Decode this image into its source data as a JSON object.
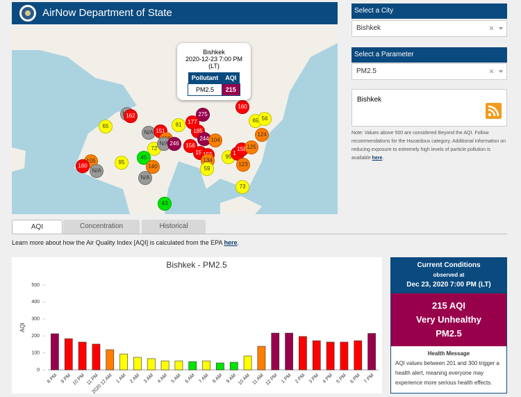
{
  "header": {
    "title": "AirNow Department of State"
  },
  "map": {
    "popup": {
      "city": "Bishkek",
      "datetime": "2020-12-23 7:00 PM",
      "zone": "(LT)",
      "headers": [
        "Pollutant",
        "AQI"
      ],
      "pollutant": "PM2.5",
      "aqi": "215",
      "aqi_color": "#99004c"
    },
    "markers": [
      {
        "label": "65",
        "color": "#ffff00"
      },
      {
        "label": "N/A",
        "color": "#999999"
      },
      {
        "label": "162",
        "color": "#ff0000"
      },
      {
        "label": "91",
        "color": "#ffff00"
      },
      {
        "label": "N/A",
        "color": "#999999"
      },
      {
        "label": "151",
        "color": "#ff0000"
      },
      {
        "label": "118",
        "color": "#ff7e00"
      },
      {
        "label": "72",
        "color": "#ffff00"
      },
      {
        "label": "N/A",
        "color": "#999999"
      },
      {
        "label": "246",
        "color": "#99004c"
      },
      {
        "label": "185",
        "color": "#ff0000"
      },
      {
        "label": "275",
        "color": "#99004c"
      },
      {
        "label": "177",
        "color": "#ff0000"
      },
      {
        "label": "244",
        "color": "#99004c"
      },
      {
        "label": "104",
        "color": "#ff7e00"
      },
      {
        "label": "156",
        "color": "#ff0000"
      },
      {
        "label": "155",
        "color": "#ff0000"
      },
      {
        "label": "155",
        "color": "#ff0000"
      },
      {
        "label": "134",
        "color": "#ff7e00"
      },
      {
        "label": "59",
        "color": "#ffff00"
      },
      {
        "label": "95",
        "color": "#ffff00"
      },
      {
        "label": "173",
        "color": "#ff0000"
      },
      {
        "label": "158",
        "color": "#ff0000"
      },
      {
        "label": "125",
        "color": "#ff7e00"
      },
      {
        "label": "123",
        "color": "#ff7e00"
      },
      {
        "label": "124",
        "color": "#ff7e00"
      },
      {
        "label": "69",
        "color": "#ffff00"
      },
      {
        "label": "56",
        "color": "#ffff00"
      },
      {
        "label": "160",
        "color": "#ff0000"
      },
      {
        "label": "73",
        "color": "#ffff00"
      },
      {
        "label": "43",
        "color": "#00e400"
      },
      {
        "label": "45",
        "color": "#00e400"
      },
      {
        "label": "140",
        "color": "#ff7e00"
      },
      {
        "label": "N/A",
        "color": "#999999"
      },
      {
        "label": "95",
        "color": "#ffff00"
      },
      {
        "label": "105",
        "color": "#ff7e00"
      },
      {
        "label": "160",
        "color": "#ff0000"
      },
      {
        "label": "N/A",
        "color": "#999999"
      }
    ]
  },
  "tabs": [
    "AQI",
    "Concentration",
    "Historical"
  ],
  "learn_more": {
    "text": "Learn more about how the Air Quality Index [AQI] is calculated from the EPA ",
    "link": "here",
    "end": "."
  },
  "sidebar": {
    "city_label": "Select a City",
    "city": "Bishkek",
    "param_label": "Select a Parameter",
    "param": "PM2.5",
    "feed": "Bishkek",
    "note": "Note: Values above 500 are considered Beyond the AQI. Follow recommendations for the Hazardous category. Additional information on reducing exposure to extremely high levels of particle pollution is available ",
    "note_link": "here",
    "note_end": "."
  },
  "current": {
    "title": "Current Conditions",
    "observed": "observed at",
    "datetime": "Dec 23, 2020 7:00 PM (LT)",
    "aqi": "215 AQI",
    "category": "Very Unhealthy",
    "pollutant": "PM2.5",
    "color": "#99004c",
    "health_title": "Health Message",
    "health_text": "AQI values between 201 and 300 trigger a health alert, meaning everyone may experience more serious health effects."
  },
  "chart_data": {
    "type": "bar",
    "title": "Bishkek - PM2.5",
    "y_label": "AQI",
    "categories": [
      "8 PM",
      "9 PM",
      "10 PM",
      "11 PM",
      "2020 12 AM",
      "1 AM",
      "2 AM",
      "3 AM",
      "4 AM",
      "5 AM",
      "6 AM",
      "7 AM",
      "8 AM",
      "9 AM",
      "10 AM",
      "11 AM",
      "12 PM",
      "1 PM",
      "2 PM",
      "3 PM",
      "4 PM",
      "5 PM",
      "6 PM",
      "7 PM"
    ],
    "values": [
      213,
      184,
      164,
      152,
      119,
      94,
      74,
      66,
      53,
      53,
      49,
      53,
      41,
      45,
      82,
      139,
      217,
      217,
      197,
      172,
      164,
      164,
      172,
      215
    ],
    "colors": [
      "#99004c",
      "#ff0000",
      "#ff0000",
      "#ff0000",
      "#ff7e00",
      "#ffff00",
      "#ffff00",
      "#ffff00",
      "#ffff00",
      "#ffff00",
      "#00e400",
      "#ffff00",
      "#00e400",
      "#00e400",
      "#ffff00",
      "#ff7e00",
      "#99004c",
      "#99004c",
      "#ff0000",
      "#ff0000",
      "#ff0000",
      "#ff0000",
      "#ff0000",
      "#99004c"
    ],
    "ylim": [
      0,
      500
    ],
    "yticks": [
      0,
      100,
      200,
      300,
      400,
      500
    ],
    "grid": false
  }
}
